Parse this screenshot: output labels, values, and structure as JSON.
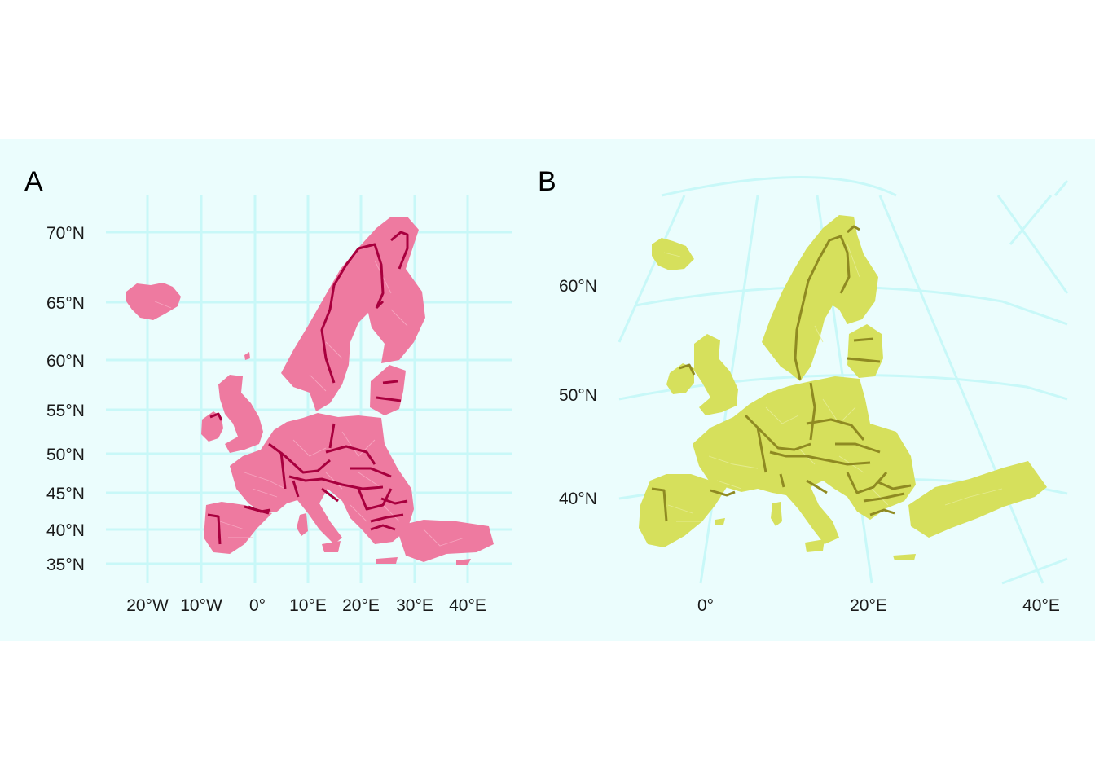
{
  "colors": {
    "background": "#ebfdfd",
    "grid": "#c8f8f8",
    "panel_a_fill": "#ee7aa0",
    "panel_a_border": "#a8003e",
    "panel_a_internal": "#f6a8c2",
    "panel_b_fill": "#d6e05c",
    "panel_b_border": "#8f8a22",
    "panel_b_internal": "#e6ec96"
  },
  "panels": [
    {
      "label": "A",
      "projection": "equirectangular (latitude axis stretched)",
      "y_ticks": [
        "70°N",
        "65°N",
        "60°N",
        "55°N",
        "50°N",
        "45°N",
        "40°N",
        "35°N"
      ],
      "x_ticks": [
        "20°W",
        "10°W",
        "0°",
        "10°E",
        "20°E",
        "30°E",
        "40°E"
      ]
    },
    {
      "label": "B",
      "projection": "conic (curved graticule)",
      "y_ticks": [
        "60°N",
        "50°N",
        "40°N"
      ],
      "x_ticks": [
        "0°",
        "20°E",
        "40°E"
      ]
    }
  ]
}
